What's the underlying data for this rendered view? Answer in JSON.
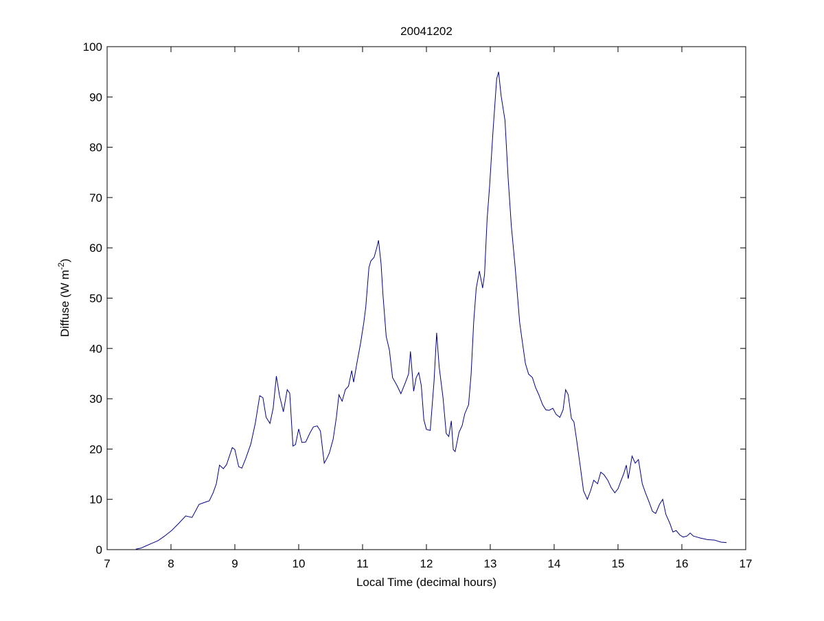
{
  "chart_data": {
    "type": "line",
    "title": "20041202",
    "xlabel": "Local Time (decimal hours)",
    "ylabel": {
      "text": "Diffuse (W m",
      "superscript": "-2",
      "suffix": ")"
    },
    "xlim": [
      7,
      17
    ],
    "xticks": [
      7,
      8,
      9,
      10,
      11,
      12,
      13,
      14,
      15,
      16,
      17
    ],
    "ylim": [
      0,
      100
    ],
    "yticks": [
      0,
      10,
      20,
      30,
      40,
      50,
      60,
      70,
      80,
      90,
      100
    ],
    "grid": false,
    "series": [
      {
        "color": "#000080",
        "x": [
          7.45,
          7.53,
          7.6,
          7.69,
          7.8,
          7.9,
          8.01,
          8.12,
          8.23,
          8.33,
          8.44,
          8.55,
          8.6,
          8.66,
          8.71,
          8.76,
          8.82,
          8.87,
          8.96,
          9.0,
          9.06,
          9.11,
          9.17,
          9.25,
          9.32,
          9.39,
          9.44,
          9.49,
          9.55,
          9.6,
          9.65,
          9.7,
          9.76,
          9.82,
          9.86,
          9.91,
          9.95,
          10.0,
          10.05,
          10.11,
          10.18,
          10.23,
          10.29,
          10.34,
          10.4,
          10.44,
          10.48,
          10.54,
          10.59,
          10.63,
          10.68,
          10.73,
          10.78,
          10.83,
          10.86,
          10.91,
          10.97,
          11.02,
          11.05,
          11.1,
          11.13,
          11.18,
          11.22,
          11.25,
          11.29,
          11.32,
          11.37,
          11.42,
          11.47,
          11.54,
          11.6,
          11.67,
          11.72,
          11.75,
          11.8,
          11.84,
          11.88,
          11.92,
          11.96,
          12.0,
          12.06,
          12.12,
          12.16,
          12.2,
          12.26,
          12.31,
          12.35,
          12.39,
          12.42,
          12.45,
          12.51,
          12.56,
          12.6,
          12.66,
          12.7,
          12.74,
          12.78,
          12.83,
          12.88,
          12.91,
          12.95,
          12.99,
          13.04,
          13.1,
          13.13,
          13.17,
          13.23,
          13.28,
          13.33,
          13.39,
          13.46,
          13.49,
          13.55,
          13.6,
          13.66,
          13.71,
          13.76,
          13.82,
          13.87,
          13.92,
          13.98,
          14.03,
          14.09,
          14.14,
          14.18,
          14.22,
          14.27,
          14.31,
          14.35,
          14.41,
          14.46,
          14.52,
          14.57,
          14.62,
          14.68,
          14.73,
          14.78,
          14.84,
          14.89,
          14.95,
          15.0,
          15.05,
          15.09,
          15.13,
          15.16,
          15.22,
          15.27,
          15.32,
          15.38,
          15.43,
          15.48,
          15.54,
          15.59,
          15.65,
          15.7,
          15.75,
          15.81,
          15.86,
          15.91,
          15.97,
          16.02,
          16.08,
          16.13,
          16.18,
          16.29,
          16.4,
          16.51,
          16.61,
          16.7
        ],
        "values": [
          0.1,
          0.3,
          0.7,
          1.2,
          1.8,
          2.7,
          3.8,
          5.2,
          6.7,
          6.4,
          9.0,
          9.5,
          9.7,
          11.3,
          13.1,
          16.8,
          16.1,
          16.9,
          20.3,
          19.9,
          16.5,
          16.2,
          18.1,
          21.0,
          25.1,
          30.6,
          30.2,
          26.3,
          25.1,
          28.1,
          34.5,
          30.6,
          27.4,
          31.8,
          31.1,
          20.6,
          20.9,
          24.0,
          21.3,
          21.4,
          23.3,
          24.4,
          24.6,
          23.6,
          17.2,
          18.1,
          19.2,
          22.0,
          26.3,
          30.8,
          29.5,
          31.8,
          32.5,
          35.6,
          33.3,
          37.0,
          41.1,
          45.2,
          48.2,
          56.1,
          57.4,
          58.1,
          59.9,
          61.5,
          56.8,
          50.6,
          42.4,
          39.7,
          34.2,
          32.6,
          31.0,
          33.2,
          34.9,
          39.4,
          31.5,
          34.2,
          35.2,
          32.6,
          25.8,
          23.9,
          23.7,
          33.6,
          43.1,
          36.3,
          30.2,
          23.1,
          22.5,
          25.6,
          19.9,
          19.5,
          23.3,
          24.7,
          27.0,
          28.8,
          34.9,
          45.2,
          52.0,
          55.4,
          52.0,
          54.7,
          65.6,
          72.4,
          82.7,
          93.6,
          95.0,
          90.2,
          85.4,
          73.8,
          64.3,
          56.1,
          45.2,
          42.4,
          37.0,
          34.9,
          34.2,
          32.2,
          30.8,
          28.8,
          27.8,
          27.7,
          28.1,
          26.9,
          26.3,
          27.8,
          31.8,
          30.8,
          26.1,
          25.4,
          22.0,
          16.5,
          11.7,
          10.0,
          11.7,
          13.8,
          13.1,
          15.4,
          14.9,
          13.8,
          12.4,
          11.3,
          12.1,
          13.8,
          15.1,
          16.8,
          14.1,
          18.6,
          17.2,
          17.9,
          13.1,
          11.3,
          9.7,
          7.6,
          7.2,
          9.0,
          10.0,
          7.0,
          5.3,
          3.5,
          3.8,
          2.9,
          2.5,
          2.7,
          3.3,
          2.7,
          2.3,
          2.0,
          1.9,
          1.5,
          1.4
        ]
      }
    ]
  }
}
